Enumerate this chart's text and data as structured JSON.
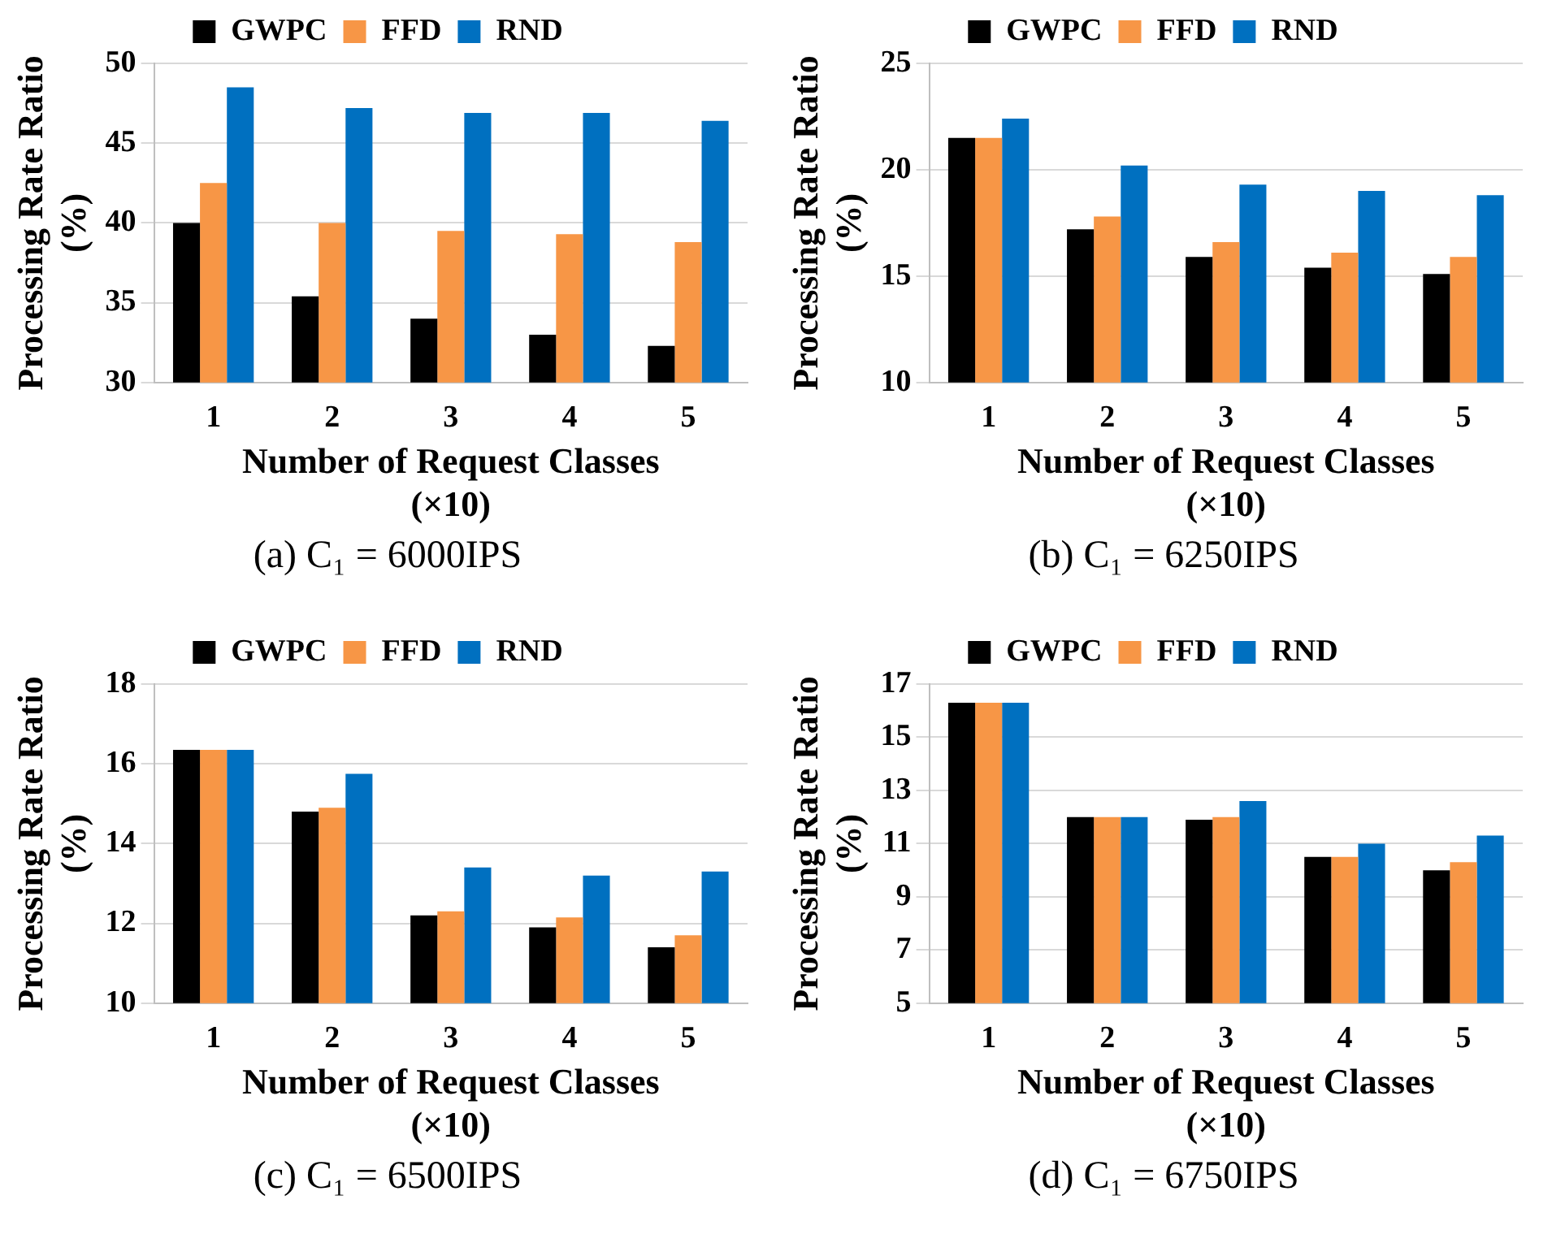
{
  "chart_data": [
    {
      "type": "bar",
      "categories": [
        "1",
        "2",
        "3",
        "4",
        "5"
      ],
      "xlabel": "Number of Request Classes (×10)",
      "ylabel": "Processing Rate Ratio (%)",
      "ylim": [
        30,
        50
      ],
      "yticks": [
        30,
        35,
        40,
        45,
        50
      ],
      "grid": "y",
      "legend": "top",
      "annotations": [
        "(a) C₁ = 6000IPS"
      ],
      "series": [
        {
          "name": "GWPC",
          "color": "#000000",
          "values": [
            40,
            35.4,
            34,
            33,
            32.3
          ]
        },
        {
          "name": "FFD",
          "color": "#f79646",
          "values": [
            42.5,
            40,
            39.5,
            39.3,
            38.8
          ]
        },
        {
          "name": "RND",
          "color": "#0070c0",
          "values": [
            48.5,
            47.2,
            46.9,
            46.9,
            46.4
          ]
        }
      ]
    },
    {
      "type": "bar",
      "categories": [
        "1",
        "2",
        "3",
        "4",
        "5"
      ],
      "xlabel": "Number of Request Classes (×10)",
      "ylabel": "Processing Rate Ratio (%)",
      "ylim": [
        10,
        25
      ],
      "yticks": [
        10,
        15,
        20,
        25
      ],
      "grid": "y",
      "legend": "top",
      "annotations": [
        "(b) C₁ = 6250IPS"
      ],
      "series": [
        {
          "name": "GWPC",
          "color": "#000000",
          "values": [
            21.5,
            17.2,
            15.9,
            15.4,
            15.1
          ]
        },
        {
          "name": "FFD",
          "color": "#f79646",
          "values": [
            21.5,
            17.8,
            16.6,
            16.1,
            15.9
          ]
        },
        {
          "name": "RND",
          "color": "#0070c0",
          "values": [
            22.4,
            20.2,
            19.3,
            19,
            18.8
          ]
        }
      ]
    },
    {
      "type": "bar",
      "categories": [
        "1",
        "2",
        "3",
        "4",
        "5"
      ],
      "xlabel": "Number of Request Classes (×10)",
      "ylabel": "Processing Rate Ratio (%)",
      "ylim": [
        10,
        18
      ],
      "yticks": [
        10,
        12,
        14,
        16,
        18
      ],
      "grid": "y",
      "legend": "top",
      "annotations": [
        "(c) C₁ = 6500IPS"
      ],
      "series": [
        {
          "name": "GWPC",
          "color": "#000000",
          "values": [
            16.35,
            14.8,
            12.2,
            11.9,
            11.4
          ]
        },
        {
          "name": "FFD",
          "color": "#f79646",
          "values": [
            16.35,
            14.9,
            12.3,
            12.15,
            11.7
          ]
        },
        {
          "name": "RND",
          "color": "#0070c0",
          "values": [
            16.35,
            15.75,
            13.4,
            13.2,
            13.3
          ]
        }
      ]
    },
    {
      "type": "bar",
      "categories": [
        "1",
        "2",
        "3",
        "4",
        "5"
      ],
      "xlabel": "Number of Request Classes (×10)",
      "ylabel": "Processing Rate Ratio (%)",
      "ylim": [
        5,
        17
      ],
      "yticks": [
        5,
        7,
        9,
        11,
        13,
        15,
        17
      ],
      "grid": "y",
      "legend": "top",
      "annotations": [
        "(d) C₁ = 6750IPS"
      ],
      "series": [
        {
          "name": "GWPC",
          "color": "#000000",
          "values": [
            16.3,
            12,
            11.9,
            10.5,
            10
          ]
        },
        {
          "name": "FFD",
          "color": "#f79646",
          "values": [
            16.3,
            12,
            12,
            10.5,
            10.3
          ]
        },
        {
          "name": "RND",
          "color": "#0070c0",
          "values": [
            16.3,
            12,
            12.6,
            11,
            11.3
          ]
        }
      ]
    }
  ]
}
